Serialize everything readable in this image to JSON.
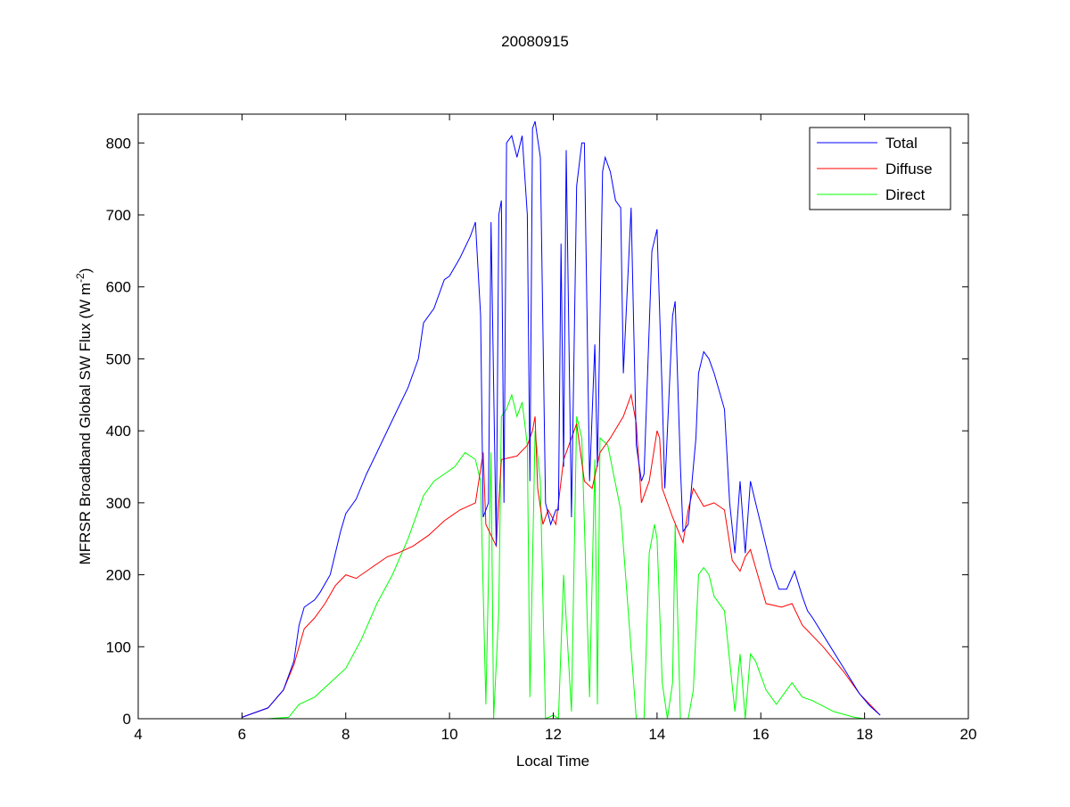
{
  "chart_data": {
    "type": "line",
    "title": "20080915",
    "xlabel": "Local Time",
    "ylabel": "MFRSR Broadband Global SW Flux (W m",
    "ylabel_superscript": "2",
    "ylabel_suffix": ")",
    "ylabel_exponent_prefix": "-",
    "xlim": [
      4,
      20
    ],
    "ylim": [
      0,
      840
    ],
    "xticks": [
      4,
      6,
      8,
      10,
      12,
      14,
      16,
      18,
      20
    ],
    "yticks": [
      0,
      100,
      200,
      300,
      400,
      500,
      600,
      700,
      800
    ],
    "grid": false,
    "legend_position": "top-right",
    "series": [
      {
        "name": "Total",
        "color": "#0000ff",
        "points": [
          [
            6.0,
            2
          ],
          [
            6.5,
            15
          ],
          [
            6.8,
            40
          ],
          [
            7.0,
            80
          ],
          [
            7.1,
            130
          ],
          [
            7.2,
            155
          ],
          [
            7.4,
            165
          ],
          [
            7.5,
            175
          ],
          [
            7.7,
            200
          ],
          [
            7.9,
            260
          ],
          [
            8.0,
            285
          ],
          [
            8.2,
            305
          ],
          [
            8.4,
            340
          ],
          [
            8.6,
            370
          ],
          [
            8.8,
            400
          ],
          [
            9.0,
            430
          ],
          [
            9.2,
            460
          ],
          [
            9.4,
            500
          ],
          [
            9.5,
            550
          ],
          [
            9.7,
            570
          ],
          [
            9.9,
            610
          ],
          [
            10.0,
            615
          ],
          [
            10.2,
            640
          ],
          [
            10.4,
            670
          ],
          [
            10.5,
            690
          ],
          [
            10.6,
            560
          ],
          [
            10.65,
            280
          ],
          [
            10.75,
            300
          ],
          [
            10.8,
            690
          ],
          [
            10.9,
            240
          ],
          [
            10.95,
            700
          ],
          [
            11.0,
            720
          ],
          [
            11.05,
            300
          ],
          [
            11.1,
            800
          ],
          [
            11.2,
            810
          ],
          [
            11.3,
            780
          ],
          [
            11.4,
            810
          ],
          [
            11.5,
            700
          ],
          [
            11.55,
            330
          ],
          [
            11.6,
            820
          ],
          [
            11.65,
            830
          ],
          [
            11.75,
            780
          ],
          [
            11.85,
            300
          ],
          [
            11.95,
            270
          ],
          [
            12.05,
            290
          ],
          [
            12.1,
            290
          ],
          [
            12.15,
            660
          ],
          [
            12.2,
            350
          ],
          [
            12.25,
            790
          ],
          [
            12.35,
            280
          ],
          [
            12.45,
            740
          ],
          [
            12.55,
            800
          ],
          [
            12.6,
            800
          ],
          [
            12.7,
            330
          ],
          [
            12.8,
            520
          ],
          [
            12.85,
            350
          ],
          [
            12.95,
            760
          ],
          [
            13.0,
            780
          ],
          [
            13.1,
            760
          ],
          [
            13.2,
            720
          ],
          [
            13.3,
            710
          ],
          [
            13.35,
            480
          ],
          [
            13.5,
            710
          ],
          [
            13.6,
            380
          ],
          [
            13.7,
            330
          ],
          [
            13.75,
            340
          ],
          [
            13.9,
            650
          ],
          [
            14.0,
            680
          ],
          [
            14.1,
            450
          ],
          [
            14.15,
            320
          ],
          [
            14.3,
            560
          ],
          [
            14.35,
            580
          ],
          [
            14.45,
            350
          ],
          [
            14.5,
            260
          ],
          [
            14.6,
            270
          ],
          [
            14.75,
            390
          ],
          [
            14.8,
            480
          ],
          [
            14.9,
            510
          ],
          [
            15.0,
            500
          ],
          [
            15.1,
            480
          ],
          [
            15.3,
            430
          ],
          [
            15.4,
            300
          ],
          [
            15.5,
            230
          ],
          [
            15.6,
            330
          ],
          [
            15.7,
            230
          ],
          [
            15.8,
            330
          ],
          [
            15.9,
            300
          ],
          [
            16.0,
            270
          ],
          [
            16.2,
            210
          ],
          [
            16.35,
            180
          ],
          [
            16.5,
            180
          ],
          [
            16.65,
            205
          ],
          [
            16.8,
            170
          ],
          [
            16.9,
            150
          ],
          [
            17.0,
            140
          ],
          [
            17.3,
            105
          ],
          [
            17.6,
            70
          ],
          [
            17.9,
            35
          ],
          [
            18.1,
            18
          ],
          [
            18.3,
            5
          ]
        ]
      },
      {
        "name": "Diffuse",
        "color": "#ff0000",
        "points": [
          [
            6.0,
            2
          ],
          [
            6.5,
            15
          ],
          [
            6.8,
            40
          ],
          [
            7.0,
            75
          ],
          [
            7.2,
            125
          ],
          [
            7.4,
            140
          ],
          [
            7.6,
            160
          ],
          [
            7.8,
            185
          ],
          [
            8.0,
            200
          ],
          [
            8.2,
            195
          ],
          [
            8.5,
            210
          ],
          [
            8.8,
            225
          ],
          [
            9.0,
            230
          ],
          [
            9.3,
            240
          ],
          [
            9.6,
            255
          ],
          [
            9.9,
            275
          ],
          [
            10.2,
            290
          ],
          [
            10.5,
            300
          ],
          [
            10.65,
            370
          ],
          [
            10.7,
            270
          ],
          [
            10.9,
            240
          ],
          [
            11.0,
            360
          ],
          [
            11.3,
            365
          ],
          [
            11.5,
            380
          ],
          [
            11.6,
            400
          ],
          [
            11.65,
            420
          ],
          [
            11.7,
            320
          ],
          [
            11.8,
            270
          ],
          [
            11.9,
            290
          ],
          [
            12.05,
            270
          ],
          [
            12.2,
            360
          ],
          [
            12.3,
            380
          ],
          [
            12.45,
            410
          ],
          [
            12.6,
            330
          ],
          [
            12.75,
            320
          ],
          [
            12.9,
            370
          ],
          [
            13.1,
            390
          ],
          [
            13.35,
            420
          ],
          [
            13.5,
            450
          ],
          [
            13.6,
            410
          ],
          [
            13.7,
            300
          ],
          [
            13.85,
            330
          ],
          [
            14.0,
            400
          ],
          [
            14.05,
            390
          ],
          [
            14.1,
            320
          ],
          [
            14.3,
            280
          ],
          [
            14.5,
            245
          ],
          [
            14.6,
            290
          ],
          [
            14.7,
            320
          ],
          [
            14.9,
            295
          ],
          [
            15.1,
            300
          ],
          [
            15.3,
            290
          ],
          [
            15.45,
            220
          ],
          [
            15.6,
            205
          ],
          [
            15.7,
            225
          ],
          [
            15.8,
            235
          ],
          [
            15.9,
            210
          ],
          [
            16.1,
            160
          ],
          [
            16.4,
            155
          ],
          [
            16.6,
            160
          ],
          [
            16.8,
            130
          ],
          [
            17.2,
            100
          ],
          [
            17.6,
            65
          ],
          [
            17.9,
            35
          ],
          [
            18.3,
            5
          ]
        ]
      },
      {
        "name": "Direct",
        "color": "#00ff00",
        "points": [
          [
            6.5,
            0
          ],
          [
            6.9,
            2
          ],
          [
            7.1,
            20
          ],
          [
            7.4,
            30
          ],
          [
            7.7,
            50
          ],
          [
            8.0,
            70
          ],
          [
            8.3,
            110
          ],
          [
            8.6,
            160
          ],
          [
            8.9,
            200
          ],
          [
            9.2,
            250
          ],
          [
            9.5,
            310
          ],
          [
            9.7,
            330
          ],
          [
            9.9,
            340
          ],
          [
            10.1,
            350
          ],
          [
            10.3,
            370
          ],
          [
            10.5,
            360
          ],
          [
            10.6,
            330
          ],
          [
            10.7,
            20
          ],
          [
            10.8,
            370
          ],
          [
            10.85,
            0
          ],
          [
            10.95,
            150
          ],
          [
            11.0,
            420
          ],
          [
            11.1,
            430
          ],
          [
            11.2,
            450
          ],
          [
            11.3,
            420
          ],
          [
            11.4,
            440
          ],
          [
            11.5,
            380
          ],
          [
            11.55,
            30
          ],
          [
            11.65,
            400
          ],
          [
            11.75,
            330
          ],
          [
            11.85,
            0
          ],
          [
            12.0,
            5
          ],
          [
            12.1,
            0
          ],
          [
            12.2,
            200
          ],
          [
            12.35,
            10
          ],
          [
            12.45,
            420
          ],
          [
            12.55,
            390
          ],
          [
            12.7,
            30
          ],
          [
            12.8,
            360
          ],
          [
            12.85,
            20
          ],
          [
            12.9,
            390
          ],
          [
            13.05,
            380
          ],
          [
            13.3,
            290
          ],
          [
            13.6,
            0
          ],
          [
            13.75,
            0
          ],
          [
            13.85,
            230
          ],
          [
            13.95,
            270
          ],
          [
            14.0,
            250
          ],
          [
            14.1,
            50
          ],
          [
            14.2,
            0
          ],
          [
            14.3,
            50
          ],
          [
            14.35,
            270
          ],
          [
            14.45,
            0
          ],
          [
            14.6,
            0
          ],
          [
            14.7,
            40
          ],
          [
            14.8,
            200
          ],
          [
            14.9,
            210
          ],
          [
            15.0,
            200
          ],
          [
            15.1,
            170
          ],
          [
            15.2,
            160
          ],
          [
            15.3,
            150
          ],
          [
            15.5,
            10
          ],
          [
            15.6,
            90
          ],
          [
            15.7,
            0
          ],
          [
            15.8,
            90
          ],
          [
            15.9,
            80
          ],
          [
            16.1,
            40
          ],
          [
            16.3,
            20
          ],
          [
            16.5,
            40
          ],
          [
            16.6,
            50
          ],
          [
            16.8,
            30
          ],
          [
            17.0,
            25
          ],
          [
            17.4,
            10
          ],
          [
            17.8,
            2
          ],
          [
            18.0,
            0
          ]
        ]
      }
    ]
  }
}
